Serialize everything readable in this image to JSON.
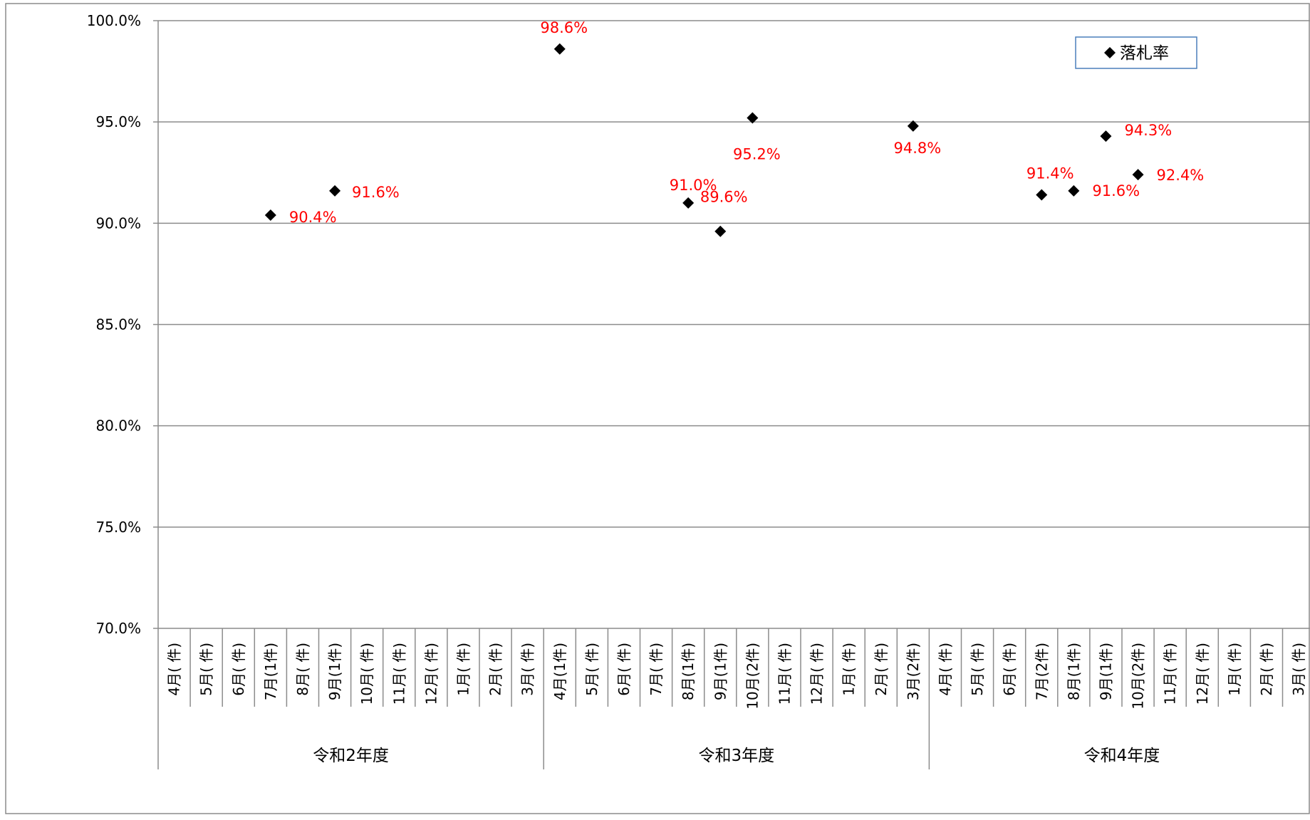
{
  "chart_data": {
    "type": "scatter",
    "title": "",
    "xlabel": "",
    "ylabel": "",
    "ylim": [
      70,
      100
    ],
    "y_ticks": [
      "70.0%",
      "75.0%",
      "80.0%",
      "85.0%",
      "90.0%",
      "95.0%",
      "100.0%"
    ],
    "grid": true,
    "legend_position": "top-right",
    "groups": [
      "令和2年度",
      "令和3年度",
      "令和4年度"
    ],
    "categories": [
      "4月(  件)",
      "5月(  件)",
      "6月(  件)",
      "7月(1件)",
      "8月(  件)",
      "9月(1件)",
      "10月(  件)",
      "11月(  件)",
      "12月(  件)",
      "1月(  件)",
      "2月(  件)",
      "3月(  件)",
      "4月(1件)",
      "5月(  件)",
      "6月(  件)",
      "7月(  件)",
      "8月(1件)",
      "9月(1件)",
      "10月(2件)",
      "11月(  件)",
      "12月(  件)",
      "1月(  件)",
      "2月(  件)",
      "3月(2件)",
      "4月(  件)",
      "5月(  件)",
      "6月(  件)",
      "7月(2件)",
      "8月(1件)",
      "9月(1件)",
      "10月(2件)",
      "11月(  件)",
      "12月(  件)",
      "1月(  件)",
      "2月(  件)",
      "3月(  件)"
    ],
    "series": [
      {
        "name": "落札率",
        "color": "#000000",
        "marker": "diamond",
        "label_color": "#ff0000",
        "points": [
          {
            "category": "7月(1件)",
            "group": "令和2年度",
            "value": 90.4,
            "label": "90.4%"
          },
          {
            "category": "9月(1件)",
            "group": "令和2年度",
            "value": 91.6,
            "label": "91.6%"
          },
          {
            "category": "4月(1件)",
            "group": "令和3年度",
            "value": 98.6,
            "label": "98.6%"
          },
          {
            "category": "8月(1件)",
            "group": "令和3年度",
            "value": 91.0,
            "label": "91.0%"
          },
          {
            "category": "9月(1件)",
            "group": "令和3年度",
            "value": 89.6,
            "label": "89.6%"
          },
          {
            "category": "10月(2件)",
            "group": "令和3年度",
            "value": 95.2,
            "label": "95.2%"
          },
          {
            "category": "3月(2件)",
            "group": "令和3年度",
            "value": 94.8,
            "label": "94.8%"
          },
          {
            "category": "7月(2件)",
            "group": "令和4年度",
            "value": 91.4,
            "label": "91.4%"
          },
          {
            "category": "8月(1件)",
            "group": "令和4年度",
            "value": 91.6,
            "label": "91.6%"
          },
          {
            "category": "9月(1件)",
            "group": "令和4年度",
            "value": 94.3,
            "label": "94.3%"
          },
          {
            "category": "10月(2件)",
            "group": "令和4年度",
            "value": 92.4,
            "label": "92.4%"
          }
        ]
      }
    ]
  }
}
